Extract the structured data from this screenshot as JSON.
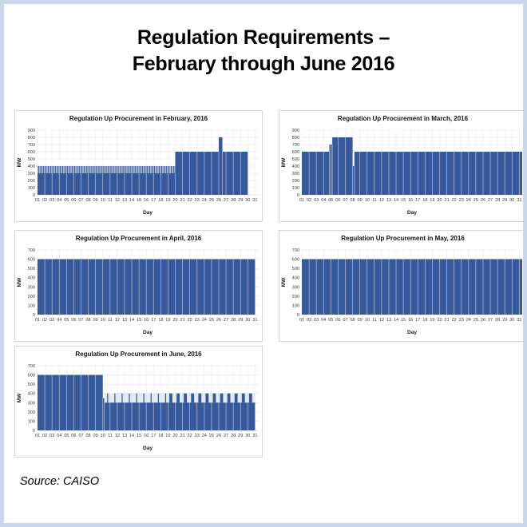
{
  "page": {
    "title": "Regulation Requirements –\nFebruary through June 2016",
    "source": "Source: CAISO"
  },
  "colors": {
    "bar": "#36599c",
    "bar_gap": "#b6c4de",
    "grid_h": "#e2e2e2",
    "grid_v": "#ebebeb",
    "baseline": "#c8c8c8",
    "frame_border": "#cdd9ea",
    "panel_border": "#d6d6d6"
  },
  "chart_common": {
    "xlabel": "Day",
    "ylabel": "MW",
    "ytick_step": 100,
    "x_domain": [
      1,
      31.4
    ],
    "x_ticks": [
      "01",
      "02",
      "03",
      "04",
      "05",
      "06",
      "07",
      "08",
      "09",
      "10",
      "11",
      "12",
      "13",
      "14",
      "15",
      "16",
      "17",
      "18",
      "19",
      "20",
      "21",
      "22",
      "23",
      "24",
      "25",
      "26",
      "27",
      "28",
      "29",
      "30",
      "31"
    ]
  },
  "chart_data": [
    {
      "type": "bar",
      "title": "Regulation Up Procurement in February, 2016",
      "month": "February 2016",
      "days_in_month": 29,
      "ylim": [
        0,
        900
      ],
      "unit": "MW",
      "segments": [
        {
          "from": 1,
          "to": 20,
          "kind": "striped",
          "low": 300,
          "high": 400,
          "spike_fracs": [
            0.08,
            0.42,
            0.75
          ],
          "spike_width": 0.1,
          "band_opacity": 0.45
        },
        {
          "from": 20,
          "to": 26,
          "kind": "flat",
          "value": 600
        },
        {
          "from": 26,
          "to": 26.5,
          "kind": "flat",
          "value": 800
        },
        {
          "from": 26.5,
          "to": 30,
          "kind": "flat",
          "value": 600
        }
      ]
    },
    {
      "type": "bar",
      "title": "Regulation Up Procurement in March, 2016",
      "month": "March 2016",
      "days_in_month": 31,
      "ylim": [
        0,
        900
      ],
      "unit": "MW",
      "segments": [
        {
          "from": 1,
          "to": 4.8,
          "kind": "flat",
          "value": 600
        },
        {
          "from": 4.8,
          "to": 5.2,
          "kind": "flat",
          "value": 700
        },
        {
          "from": 5.2,
          "to": 8,
          "kind": "flat",
          "value": 800
        },
        {
          "from": 8,
          "to": 8.25,
          "kind": "flat",
          "value": 400
        },
        {
          "from": 8.25,
          "to": 32,
          "kind": "flat",
          "value": 600
        }
      ]
    },
    {
      "type": "bar",
      "title": "Regulation Up Procurement in April, 2016",
      "month": "April 2016",
      "days_in_month": 30,
      "ylim": [
        0,
        700
      ],
      "unit": "MW",
      "segments": [
        {
          "from": 1,
          "to": 31,
          "kind": "flat",
          "value": 600
        }
      ]
    },
    {
      "type": "bar",
      "title": "Regulation Up Procurement in May, 2016",
      "month": "May 2016",
      "days_in_month": 31,
      "ylim": [
        0,
        700
      ],
      "unit": "MW",
      "segments": [
        {
          "from": 1,
          "to": 32,
          "kind": "flat",
          "value": 600
        }
      ]
    },
    {
      "type": "bar",
      "title": "Regulation Up Procurement in June, 2016",
      "month": "June 2016",
      "days_in_month": 30,
      "ylim": [
        0,
        700
      ],
      "unit": "MW",
      "segments": [
        {
          "from": 1,
          "to": 10,
          "kind": "flat",
          "value": 600
        },
        {
          "from": 10,
          "to": 10.2,
          "kind": "flat",
          "value": 350
        },
        {
          "from": 10.2,
          "to": 19,
          "kind": "striped",
          "low": 300,
          "high": 400,
          "spike_fracs": [
            0.6
          ],
          "spike_width": 0.14,
          "band_opacity": 0.12
        },
        {
          "from": 19,
          "to": 31,
          "kind": "striped",
          "low": 300,
          "high": 400,
          "spike_fracs": [
            0.18
          ],
          "spike_width": 0.42,
          "band_opacity": 0.12
        }
      ]
    }
  ]
}
